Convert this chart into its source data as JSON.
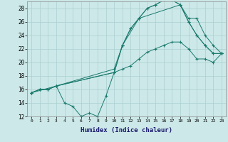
{
  "xlabel": "Humidex (Indice chaleur)",
  "background_color": "#cce8e8",
  "grid_color": "#aacfcf",
  "line_color": "#1a7a6e",
  "xlim": [
    -0.5,
    23.5
  ],
  "ylim": [
    12,
    29
  ],
  "yticks": [
    12,
    14,
    16,
    18,
    20,
    22,
    24,
    26,
    28
  ],
  "xticks": [
    0,
    1,
    2,
    3,
    4,
    5,
    6,
    7,
    8,
    9,
    10,
    11,
    12,
    13,
    14,
    15,
    16,
    17,
    18,
    19,
    20,
    21,
    22,
    23
  ],
  "series": [
    {
      "x": [
        0,
        1,
        2,
        3,
        4,
        5,
        6,
        7,
        8,
        9,
        10,
        11,
        12,
        13,
        14,
        15,
        16,
        17,
        18,
        19,
        20,
        21,
        22,
        23
      ],
      "y": [
        15.5,
        16,
        16,
        16.5,
        14,
        13.5,
        12,
        12.5,
        12,
        15,
        18.5,
        22.5,
        25,
        26.5,
        28,
        28.5,
        29.2,
        29.2,
        28.5,
        26,
        24,
        22.5,
        21.3,
        21.3
      ]
    },
    {
      "x": [
        0,
        1,
        2,
        3,
        10,
        11,
        12,
        13,
        14,
        15,
        16,
        17,
        18,
        19,
        20,
        21,
        22,
        23
      ],
      "y": [
        15.5,
        16,
        16,
        16.5,
        18.5,
        19,
        19.5,
        20.5,
        21.5,
        22,
        22.5,
        23,
        23,
        22,
        20.5,
        20.5,
        20,
        21.3
      ]
    },
    {
      "x": [
        0,
        1,
        2,
        3,
        10,
        11,
        12,
        13,
        14,
        15,
        16,
        17,
        18,
        19,
        20,
        21,
        22,
        23
      ],
      "y": [
        15.5,
        16,
        16,
        16.5,
        19,
        22.5,
        25,
        26.5,
        28,
        28.5,
        29.2,
        29.2,
        28.5,
        26.5,
        26.5,
        24,
        22.5,
        21.3
      ]
    },
    {
      "x": [
        0,
        3,
        10,
        11,
        13,
        18,
        19,
        20,
        21,
        22,
        23
      ],
      "y": [
        15.5,
        16.5,
        18.5,
        22.5,
        26.5,
        28.5,
        26,
        24,
        22.5,
        21.3,
        21.3
      ]
    }
  ]
}
